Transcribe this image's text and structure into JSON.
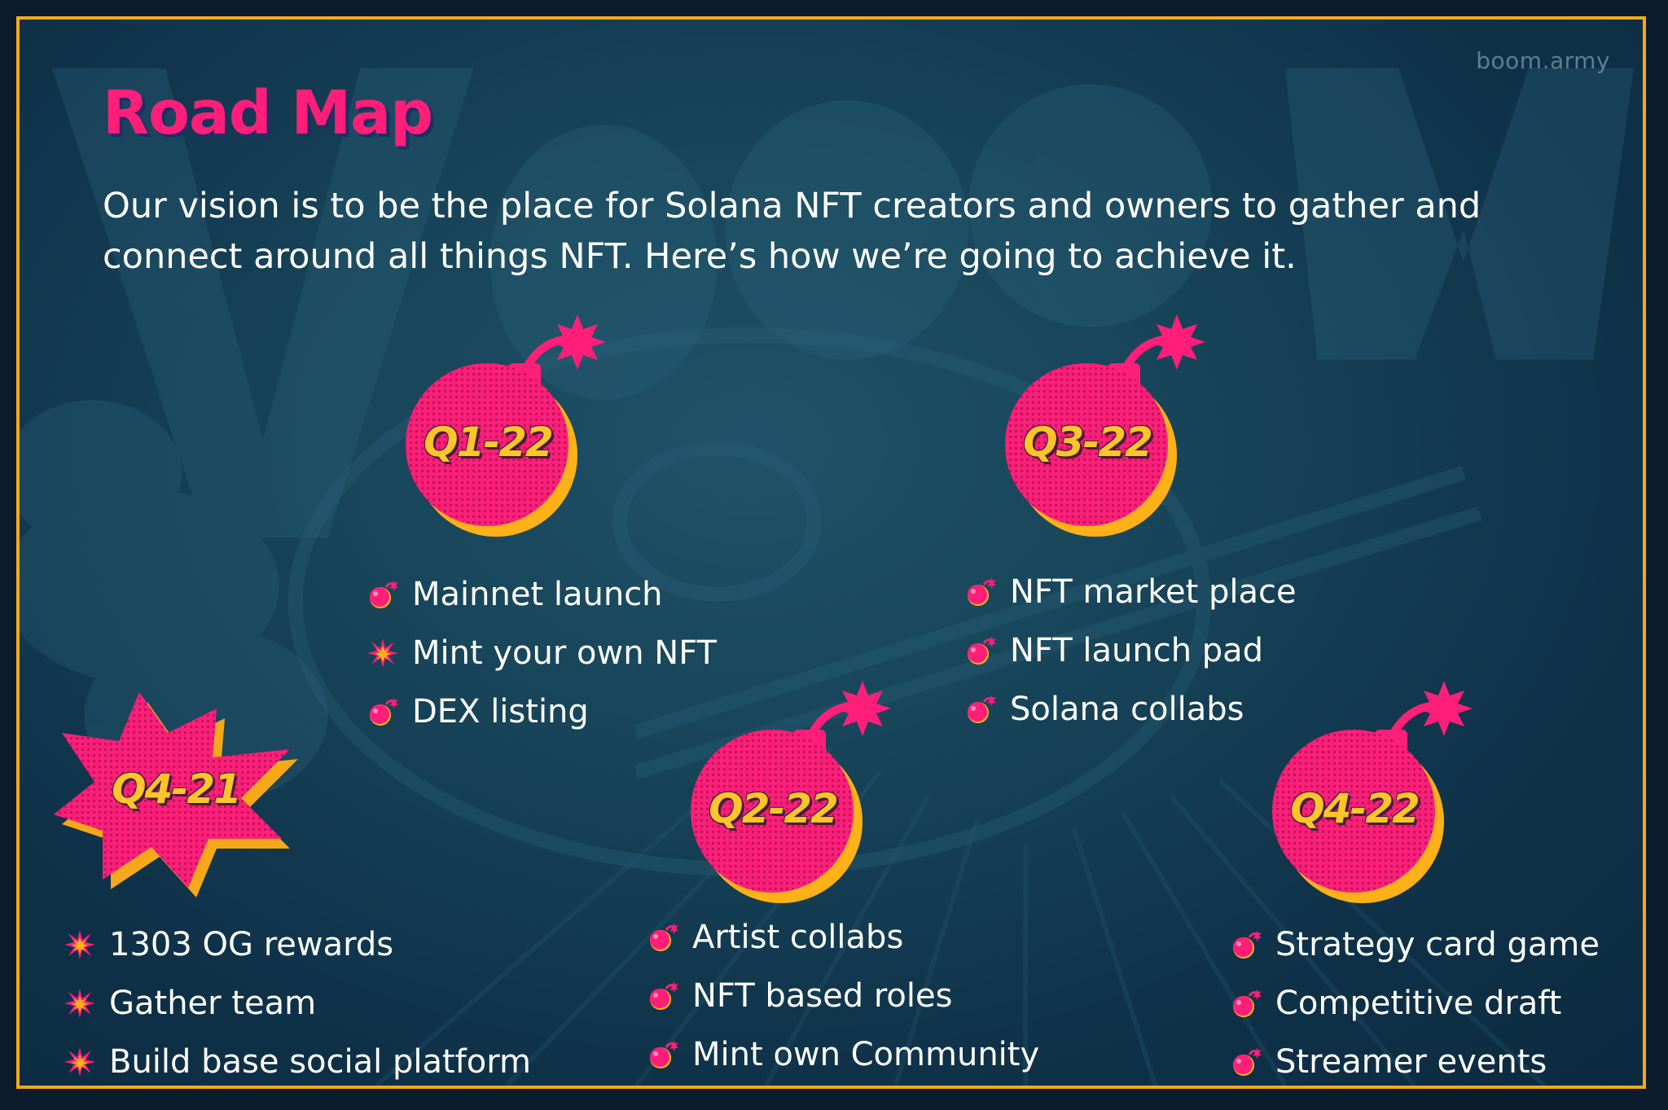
{
  "watermark": "boom.army",
  "title": "Road Map",
  "intro": "Our vision is to be the place for Solana NFT creators and owners to gather and connect around all things NFT. Here’s how we’re going to achieve it.",
  "colors": {
    "pink": "#ff1f78",
    "gold": "#f4a91a",
    "navy": "#174459"
  },
  "milestones": {
    "q4_21": {
      "label": "Q4-21",
      "items": [
        {
          "text": "1303 OG rewards",
          "icon": "burst-icon"
        },
        {
          "text": "Gather team",
          "icon": "burst-icon"
        },
        {
          "text": "Build base social platform",
          "icon": "burst-icon"
        }
      ]
    },
    "q1_22": {
      "label": "Q1-22",
      "items": [
        {
          "text": "Mainnet launch",
          "icon": "bomb-icon"
        },
        {
          "text": "Mint your own NFT",
          "icon": "burst-icon"
        },
        {
          "text": "DEX listing",
          "icon": "bomb-icon"
        }
      ]
    },
    "q2_22": {
      "label": "Q2-22",
      "items": [
        {
          "text": "Artist collabs",
          "icon": "bomb-icon"
        },
        {
          "text": "NFT based roles",
          "icon": "bomb-icon"
        },
        {
          "text": "Mint own Community",
          "icon": "bomb-icon"
        }
      ]
    },
    "q3_22": {
      "label": "Q3-22",
      "items": [
        {
          "text": "NFT market place",
          "icon": "bomb-icon"
        },
        {
          "text": "NFT launch pad",
          "icon": "bomb-icon"
        },
        {
          "text": "Solana collabs",
          "icon": "bomb-icon"
        }
      ]
    },
    "q4_22": {
      "label": "Q4-22",
      "items": [
        {
          "text": "Strategy card game",
          "icon": "bomb-icon"
        },
        {
          "text": "Competitive draft",
          "icon": "bomb-icon"
        },
        {
          "text": "Streamer events",
          "icon": "bomb-icon"
        }
      ]
    }
  }
}
